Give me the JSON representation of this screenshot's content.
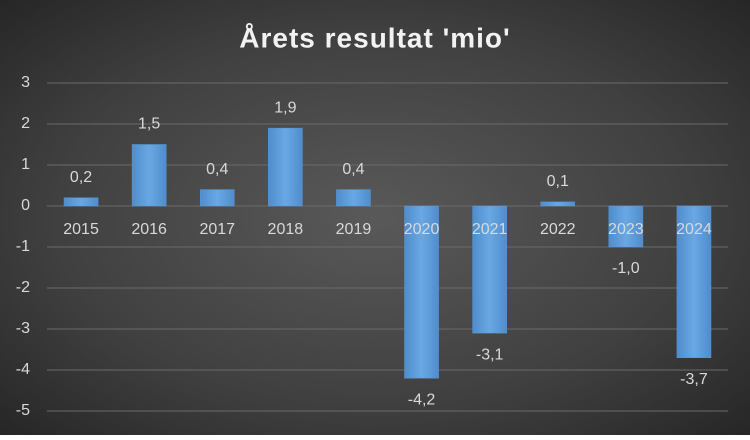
{
  "chart_data": {
    "type": "bar",
    "title": "Årets resultat 'mio'",
    "categories": [
      "2015",
      "2016",
      "2017",
      "2018",
      "2019",
      "2020",
      "2021",
      "2022",
      "2023",
      "2024"
    ],
    "values": [
      0.2,
      1.5,
      0.4,
      1.9,
      0.4,
      -4.2,
      -3.1,
      0.1,
      -1.0,
      -3.7
    ],
    "value_labels": [
      "0,2",
      "1,5",
      "0,4",
      "1,9",
      "0,4",
      "-4,2",
      "-3,1",
      "0,1",
      "-1,0",
      "-3,7"
    ],
    "color": "#5b9bd5",
    "ylim": [
      -5,
      3
    ],
    "yticks": [
      -5,
      -4,
      -3,
      -2,
      -1,
      0,
      1,
      2,
      3
    ],
    "grid": true
  }
}
